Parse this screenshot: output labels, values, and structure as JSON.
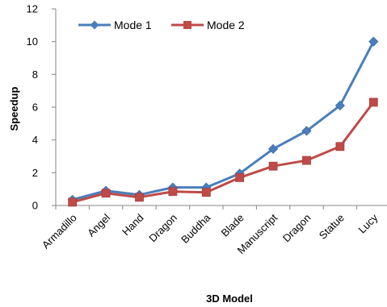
{
  "chart_data": {
    "type": "line",
    "title": "",
    "xlabel": "3D Model",
    "ylabel": "Speedup",
    "categories": [
      "Armadillo",
      "Angel",
      "Hand",
      "Dragon",
      "Buddha",
      "Blade",
      "Manuscript",
      "Dragon",
      "Statue",
      "Lucy"
    ],
    "ylim": [
      0,
      12
    ],
    "yticks": [
      0,
      2,
      4,
      6,
      8,
      10,
      12
    ],
    "grid": false,
    "legend_position": "top-left",
    "series": [
      {
        "name": "Mode 1",
        "color": "#4a7ebb",
        "marker": "diamond",
        "values": [
          0.35,
          0.9,
          0.65,
          1.1,
          1.1,
          1.95,
          3.45,
          4.55,
          6.1,
          10.0
        ]
      },
      {
        "name": "Mode 2",
        "color": "#be4b48",
        "marker": "square",
        "values": [
          0.2,
          0.75,
          0.5,
          0.85,
          0.8,
          1.7,
          2.4,
          2.75,
          3.6,
          6.3
        ]
      }
    ]
  }
}
